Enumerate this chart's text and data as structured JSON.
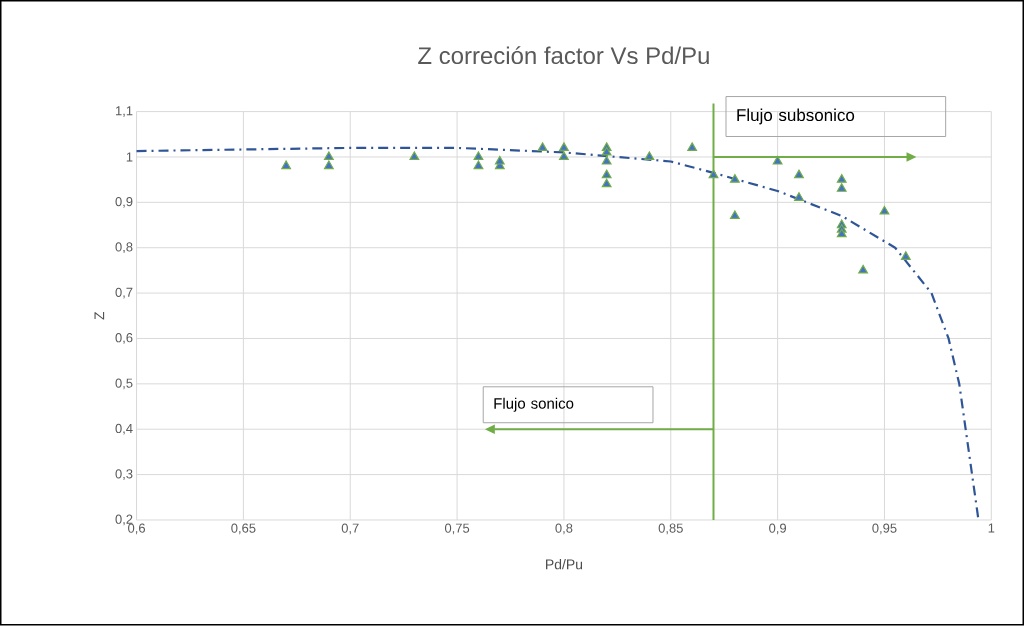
{
  "chart_data": {
    "type": "scatter",
    "title": "Z correción factor Vs Pd/Pu",
    "xlabel": "Pd/Pu",
    "ylabel": "Z",
    "xlim": [
      0.6,
      1
    ],
    "ylim": [
      0.2,
      1.1
    ],
    "xticks": [
      {
        "value": 0.6,
        "label": "0,6"
      },
      {
        "value": 0.65,
        "label": "0,65"
      },
      {
        "value": 0.7,
        "label": "0,7"
      },
      {
        "value": 0.75,
        "label": "0,75"
      },
      {
        "value": 0.8,
        "label": "0,8"
      },
      {
        "value": 0.85,
        "label": "0,85"
      },
      {
        "value": 0.9,
        "label": "0,9"
      },
      {
        "value": 0.95,
        "label": "0,95"
      },
      {
        "value": 1,
        "label": "1"
      }
    ],
    "yticks": [
      {
        "value": 0.2,
        "label": "0,2"
      },
      {
        "value": 0.3,
        "label": "0,3"
      },
      {
        "value": 0.4,
        "label": "0,4"
      },
      {
        "value": 0.5,
        "label": "0,5"
      },
      {
        "value": 0.6,
        "label": "0,6"
      },
      {
        "value": 0.7,
        "label": "0,7"
      },
      {
        "value": 0.8,
        "label": "0,8"
      },
      {
        "value": 0.9,
        "label": "0,9"
      },
      {
        "value": 1,
        "label": "1"
      },
      {
        "value": 1.1,
        "label": "1,1"
      }
    ],
    "grid": true,
    "series": [
      {
        "marker": "triangle",
        "color": "#4472c4",
        "x": [
          0.67,
          0.69,
          0.69,
          0.73,
          0.76,
          0.76,
          0.77,
          0.77,
          0.79,
          0.8,
          0.8,
          0.82,
          0.82,
          0.82,
          0.82,
          0.82,
          0.84,
          0.86,
          0.87,
          0.88,
          0.88,
          0.9,
          0.91,
          0.91,
          0.93,
          0.93,
          0.93,
          0.93,
          0.93,
          0.94,
          0.95,
          0.96
        ],
        "values": [
          0.98,
          1.0,
          0.98,
          1.0,
          1.0,
          0.98,
          0.98,
          0.99,
          1.02,
          1.02,
          1.0,
          1.02,
          1.01,
          0.99,
          0.96,
          0.94,
          1.0,
          1.02,
          0.96,
          0.95,
          0.87,
          0.99,
          0.96,
          0.91,
          0.95,
          0.93,
          0.85,
          0.84,
          0.83,
          0.75,
          0.88,
          0.78
        ]
      },
      {
        "type": "line",
        "marker": "none",
        "line_style": "dashdot",
        "color": "#2f5597",
        "x": [
          0.6,
          0.7,
          0.75,
          0.8,
          0.85,
          0.87,
          0.9,
          0.93,
          0.955,
          0.972,
          0.98,
          0.985,
          0.988,
          0.991,
          0.994
        ],
        "values": [
          1.013,
          1.02,
          1.02,
          1.01,
          0.99,
          0.965,
          0.925,
          0.87,
          0.8,
          0.7,
          0.6,
          0.5,
          0.4,
          0.3,
          0.2
        ]
      }
    ],
    "ref_lines": [
      {
        "axis": "x",
        "value": 0.87,
        "color": "#70ad47"
      }
    ],
    "annotations": [
      "Flujo subsonico",
      "Flujo sonico"
    ]
  }
}
